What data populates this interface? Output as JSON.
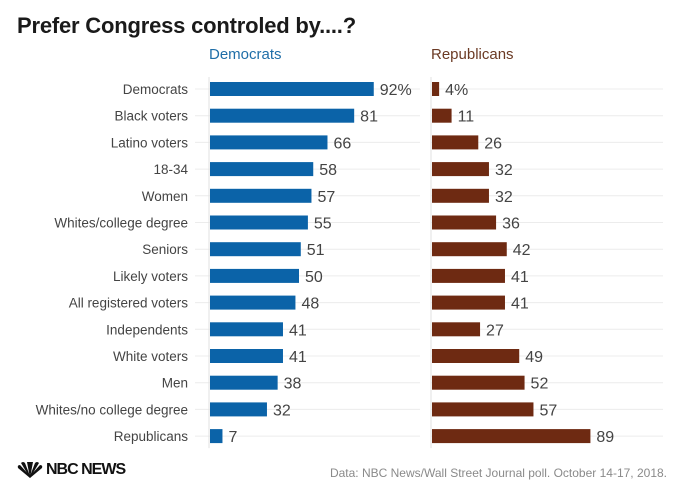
{
  "chart_data": {
    "type": "bar",
    "orientation": "horizontal",
    "title": "Prefer Congress controled by....?",
    "categories": [
      "Democrats",
      "Black voters",
      "Latino voters",
      "18-34",
      "Women",
      "Whites/college degree",
      "Seniors",
      "Likely voters",
      "All registered voters",
      "Independents",
      "White voters",
      "Men",
      "Whites/no college degree",
      "Republicans"
    ],
    "series": [
      {
        "name": "Democrats",
        "color": "#0b63a8",
        "values": [
          92,
          81,
          66,
          58,
          57,
          55,
          51,
          50,
          48,
          41,
          41,
          38,
          32,
          7
        ],
        "first_label_suffix": "%"
      },
      {
        "name": "Republicans",
        "color": "#6e2a12",
        "values": [
          4,
          11,
          26,
          32,
          32,
          36,
          42,
          41,
          41,
          27,
          49,
          52,
          57,
          89
        ],
        "first_label_suffix": "%"
      }
    ],
    "xlim": [
      0,
      100
    ],
    "grid": true,
    "layout": "side-by-side panels"
  },
  "header_colors": {
    "democrats": "#1f6ea8",
    "republicans": "#6b3a24"
  },
  "footer": {
    "logo": "NBC NEWS",
    "source": "Data: NBC News/Wall Street Journal poll. October 14-17, 2018."
  }
}
